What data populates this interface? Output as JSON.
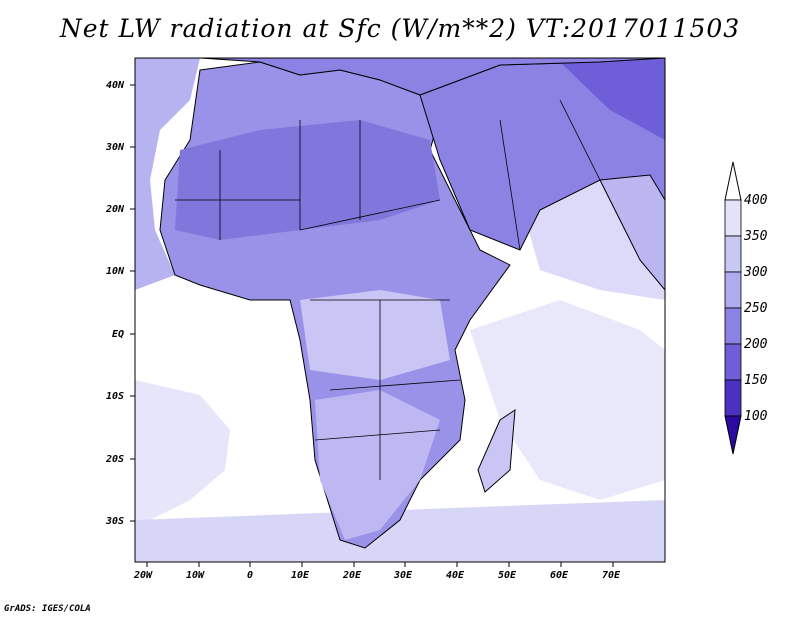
{
  "title": "Net LW radiation at Sfc (W/m**2) VT:2017011503",
  "credit": "GrADS: IGES/COLA",
  "map": {
    "region": "Africa and Middle East",
    "lon_range": [
      -23,
      80
    ],
    "lat_range": [
      -37,
      45
    ],
    "lon_ticks": [
      "20W",
      "10W",
      "0",
      "10E",
      "20E",
      "30E",
      "40E",
      "50E",
      "60E",
      "70E"
    ],
    "lat_ticks": [
      "40N",
      "30N",
      "20N",
      "10N",
      "EQ",
      "10S",
      "20S",
      "30S"
    ],
    "background_color": "#ffffff",
    "coastline_color": "#000000"
  },
  "colorbar": {
    "labels": [
      "400",
      "350",
      "300",
      "250",
      "200",
      "150",
      "100"
    ],
    "colors": [
      "#e2e2f8",
      "#c8c8f2",
      "#b0aaee",
      "#8c82e4",
      "#6e5ed8",
      "#4c30c0",
      "#2a0aa0"
    ],
    "extend": "both"
  }
}
